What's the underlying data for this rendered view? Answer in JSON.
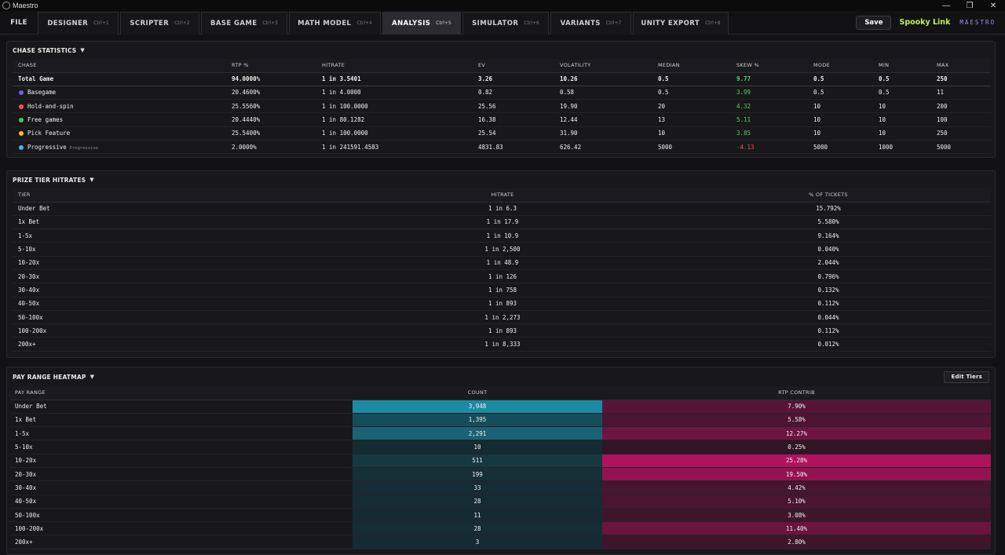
{
  "window": {
    "title": "Maestro",
    "minimize": "—",
    "restore": "❐",
    "close": "✕"
  },
  "nav": {
    "file": "FILE",
    "tabs": [
      {
        "label": "DESIGNER",
        "shortcut": "Ctrl+1",
        "width": 103
      },
      {
        "label": "SCRIPTER",
        "shortcut": "Ctrl+2",
        "width": 101
      },
      {
        "label": "BASE GAME",
        "shortcut": "Ctrl+3",
        "width": 110
      },
      {
        "label": "MATH MODEL",
        "shortcut": "Ctrl+4",
        "width": 117
      },
      {
        "label": "ANALYSIS",
        "shortcut": "Ctrl+5",
        "width": 100
      },
      {
        "label": "SIMULATOR",
        "shortcut": "Ctrl+6",
        "width": 110
      },
      {
        "label": "VARIANTS",
        "shortcut": "Ctrl+7",
        "width": 103
      },
      {
        "label": "UNITY EXPORT",
        "shortcut": "Ctrl+8",
        "width": 122
      }
    ],
    "save": "Save",
    "project": "Spooky Link",
    "brand": "MAESTRO"
  },
  "chase": {
    "title": "CHASE STATISTICS",
    "caret": "▼",
    "headers": [
      "CHASE",
      "RTP %",
      "HITRATE",
      "EV",
      "VOLATILITY",
      "MEDIAN",
      "SKEW %",
      "MODE",
      "MIN",
      "MAX"
    ],
    "total": [
      "Total Game",
      "94.0000%",
      "1 in 3.5401",
      "3.26",
      "10.26",
      "0.5",
      "9.77",
      "0.5",
      "0.5",
      "250"
    ],
    "rows": [
      {
        "color": "#6a5cff",
        "name": "Basegame",
        "tag": "",
        "rtp": "20.4600%",
        "hitrate": "1 in 4.0000",
        "ev": "0.82",
        "vol": "0.58",
        "median": "0.5",
        "skew": "3.99",
        "skew_sign": "pos",
        "mode": "0.5",
        "min": "0.5",
        "max": "11"
      },
      {
        "color": "#ff4d5e",
        "name": "Hold-and-spin",
        "tag": "",
        "rtp": "25.5560%",
        "hitrate": "1 in 100.0000",
        "ev": "25.56",
        "vol": "19.90",
        "median": "20",
        "skew": "4.32",
        "skew_sign": "pos",
        "mode": "10",
        "min": "10",
        "max": "200"
      },
      {
        "color": "#2fcf68",
        "name": "Free games",
        "tag": "",
        "rtp": "20.4440%",
        "hitrate": "1 in 80.1282",
        "ev": "16.38",
        "vol": "12.44",
        "median": "13",
        "skew": "5.11",
        "skew_sign": "pos",
        "mode": "10",
        "min": "10",
        "max": "100"
      },
      {
        "color": "#f5b82e",
        "name": "Pick Feature",
        "tag": "",
        "rtp": "25.5400%",
        "hitrate": "1 in 100.0000",
        "ev": "25.54",
        "vol": "31.90",
        "median": "10",
        "skew": "3.85",
        "skew_sign": "pos",
        "mode": "10",
        "min": "10",
        "max": "250"
      },
      {
        "color": "#3fb5f0",
        "name": "Progressive",
        "tag": "Progressive",
        "rtp": "2.0000%",
        "hitrate": "1 in 241591.4583",
        "ev": "4831.83",
        "vol": "626.42",
        "median": "5000",
        "skew": "-4.13",
        "skew_sign": "neg",
        "mode": "5000",
        "min": "1000",
        "max": "5000"
      }
    ]
  },
  "tiers": {
    "title": "PRIZE TIER HITRATES",
    "caret": "▼",
    "headers": [
      "TIER",
      "HITRATE",
      "% OF TICKETS"
    ],
    "rows": [
      [
        "Under Bet",
        "1 in 6.3",
        "15.792%"
      ],
      [
        "1x Bet",
        "1 in 17.9",
        "5.580%"
      ],
      [
        "1-5x",
        "1 in 10.9",
        "9.164%"
      ],
      [
        "5-10x",
        "1 in 2,500",
        "0.040%"
      ],
      [
        "10-20x",
        "1 in 48.9",
        "2.044%"
      ],
      [
        "20-30x",
        "1 in 126",
        "0.796%"
      ],
      [
        "30-40x",
        "1 in 758",
        "0.132%"
      ],
      [
        "40-50x",
        "1 in 893",
        "0.112%"
      ],
      [
        "50-100x",
        "1 in 2,273",
        "0.044%"
      ],
      [
        "100-200x",
        "1 in 893",
        "0.112%"
      ],
      [
        "200x+",
        "1 in 8,333",
        "0.012%"
      ]
    ]
  },
  "heatmap": {
    "title": "PAY RANGE HEATMAP",
    "caret": "▼",
    "edit_button": "Edit Tiers",
    "headers": [
      "PAY RANGE",
      "COUNT",
      "RTP CONTRIB"
    ],
    "colors": {
      "count": "#1b8ba3",
      "rtp": "#b0125e"
    },
    "rows": [
      {
        "range": "Under Bet",
        "count": "3,948",
        "count_frac": 1.0,
        "rtp": "7.90%",
        "rtp_frac": 0.31
      },
      {
        "range": "1x Bet",
        "count": "1,395",
        "count_frac": 0.35,
        "rtp": "5.58%",
        "rtp_frac": 0.22
      },
      {
        "range": "1-5x",
        "count": "2,291",
        "count_frac": 0.58,
        "rtp": "12.27%",
        "rtp_frac": 0.49
      },
      {
        "range": "5-10x",
        "count": "10",
        "count_frac": 0.0,
        "rtp": "0.25%",
        "rtp_frac": 0.01
      },
      {
        "range": "10-20x",
        "count": "511",
        "count_frac": 0.13,
        "rtp": "25.28%",
        "rtp_frac": 1.0
      },
      {
        "range": "20-30x",
        "count": "199",
        "count_frac": 0.05,
        "rtp": "19.50%",
        "rtp_frac": 0.77
      },
      {
        "range": "30-40x",
        "count": "33",
        "count_frac": 0.01,
        "rtp": "4.42%",
        "rtp_frac": 0.17
      },
      {
        "range": "40-50x",
        "count": "28",
        "count_frac": 0.01,
        "rtp": "5.10%",
        "rtp_frac": 0.2
      },
      {
        "range": "50-100x",
        "count": "11",
        "count_frac": 0.0,
        "rtp": "3.08%",
        "rtp_frac": 0.12
      },
      {
        "range": "100-200x",
        "count": "28",
        "count_frac": 0.01,
        "rtp": "11.40%",
        "rtp_frac": 0.45
      },
      {
        "range": "200x+",
        "count": "3",
        "count_frac": 0.0,
        "rtp": "2.80%",
        "rtp_frac": 0.11
      }
    ]
  }
}
